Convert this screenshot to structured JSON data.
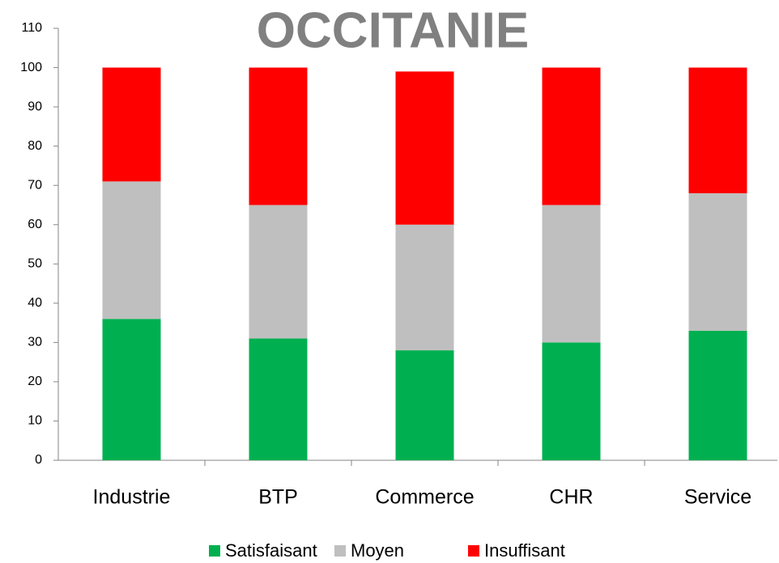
{
  "chart_data": {
    "type": "stacked_bar",
    "title": "OCCITANIE",
    "categories": [
      "Industrie",
      "BTP",
      "Commerce",
      "CHR",
      "Service"
    ],
    "series": [
      {
        "name": "Satisfaisant",
        "color": "#00b050",
        "values": [
          36,
          31,
          28,
          30,
          33
        ]
      },
      {
        "name": "Moyen",
        "color": "#bfbfbf",
        "values": [
          35,
          34,
          32,
          35,
          35
        ]
      },
      {
        "name": "Insuffisant",
        "color": "#ff0000",
        "values": [
          29,
          35,
          39,
          35,
          32
        ]
      }
    ],
    "ylim": [
      0,
      110
    ],
    "yticks": [
      0,
      10,
      20,
      30,
      40,
      50,
      60,
      70,
      80,
      90,
      100,
      110
    ],
    "grid": false,
    "legend": "bottom"
  }
}
